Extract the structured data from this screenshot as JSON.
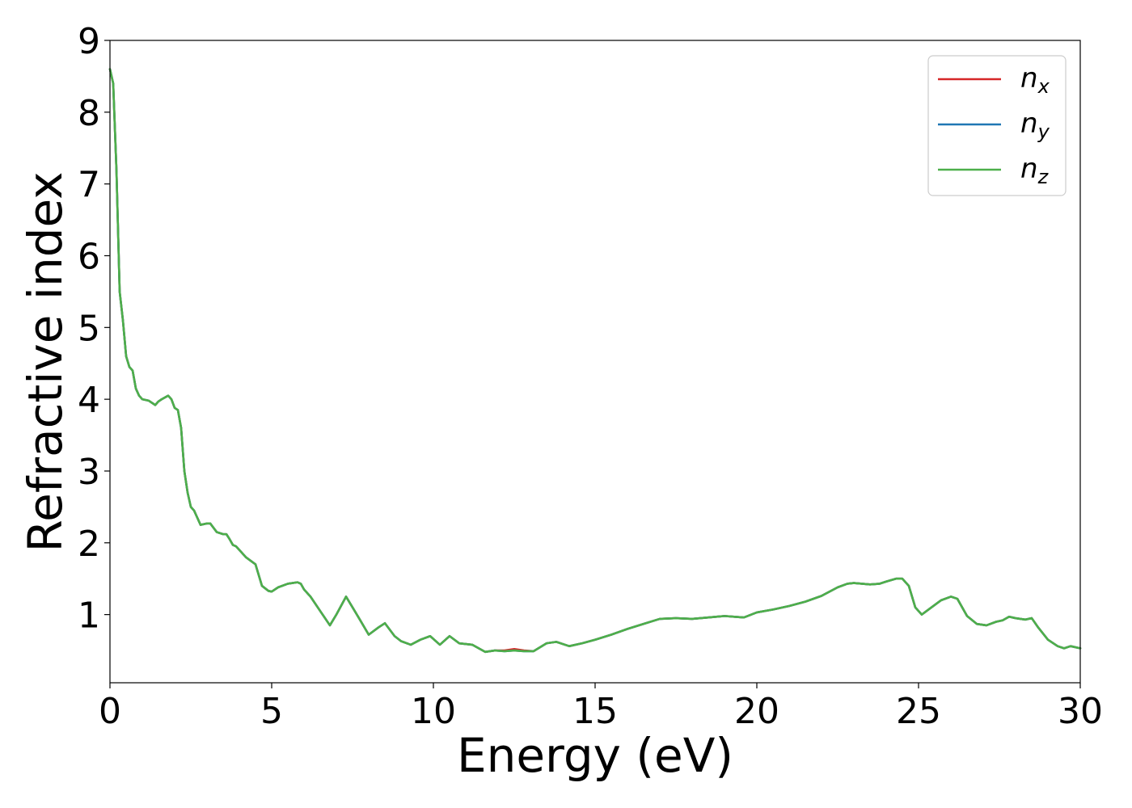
{
  "chart_data": {
    "type": "line",
    "title": "",
    "xlabel": "Energy (eV)",
    "ylabel": "Refractive index",
    "xlim": [
      0,
      30
    ],
    "ylim": [
      0.05,
      9
    ],
    "xticks": [
      0,
      5,
      10,
      15,
      20,
      25,
      30
    ],
    "yticks": [
      1,
      2,
      3,
      4,
      5,
      6,
      7,
      8,
      9
    ],
    "grid": false,
    "legend_position": "top-right",
    "legend": [
      {
        "base": "n",
        "sub": "x",
        "color": "#d62728"
      },
      {
        "base": "n",
        "sub": "y",
        "color": "#1f77b4"
      },
      {
        "base": "n",
        "sub": "z",
        "color": "#4daf4a"
      }
    ],
    "x": [
      0,
      0.1,
      0.2,
      0.3,
      0.4,
      0.5,
      0.6,
      0.7,
      0.8,
      0.9,
      1.0,
      1.2,
      1.4,
      1.5,
      1.6,
      1.8,
      1.9,
      2.0,
      2.1,
      2.2,
      2.3,
      2.4,
      2.5,
      2.6,
      2.7,
      2.8,
      3.0,
      3.1,
      3.3,
      3.5,
      3.6,
      3.7,
      3.8,
      3.9,
      4.0,
      4.2,
      4.5,
      4.7,
      4.9,
      5.0,
      5.2,
      5.5,
      5.8,
      5.9,
      6.0,
      6.2,
      6.5,
      6.8,
      7.0,
      7.3,
      7.5,
      7.7,
      8.0,
      8.3,
      8.5,
      8.8,
      9.0,
      9.3,
      9.6,
      9.9,
      10.2,
      10.5,
      10.8,
      11.2,
      11.6,
      11.9,
      12.2,
      12.5,
      12.8,
      13.1,
      13.5,
      13.8,
      14.2,
      14.6,
      15.0,
      15.5,
      16.0,
      16.5,
      17.0,
      17.5,
      18.0,
      18.5,
      19.0,
      19.3,
      19.6,
      20.0,
      20.5,
      21.0,
      21.5,
      22.0,
      22.5,
      22.8,
      23.0,
      23.5,
      23.8,
      24.0,
      24.3,
      24.5,
      24.7,
      24.9,
      25.1,
      25.4,
      25.7,
      26.0,
      26.2,
      26.5,
      26.8,
      27.1,
      27.4,
      27.6,
      27.8,
      28.0,
      28.3,
      28.5,
      28.7,
      29.0,
      29.3,
      29.5,
      29.7,
      30.0
    ],
    "series": [
      {
        "name": "n_x",
        "color": "#d62728",
        "values": [
          8.6,
          8.4,
          7.2,
          5.5,
          5.1,
          4.6,
          4.45,
          4.4,
          4.15,
          4.05,
          4.0,
          3.98,
          3.92,
          3.97,
          4.0,
          4.05,
          4.0,
          3.88,
          3.85,
          3.6,
          3.0,
          2.7,
          2.5,
          2.45,
          2.35,
          2.25,
          2.27,
          2.27,
          2.15,
          2.12,
          2.12,
          2.05,
          1.97,
          1.95,
          1.9,
          1.8,
          1.7,
          1.4,
          1.33,
          1.32,
          1.38,
          1.43,
          1.45,
          1.43,
          1.35,
          1.25,
          1.05,
          0.85,
          1.0,
          1.25,
          1.1,
          0.95,
          0.72,
          0.82,
          0.88,
          0.7,
          0.63,
          0.58,
          0.65,
          0.7,
          0.58,
          0.7,
          0.6,
          0.58,
          0.48,
          0.5,
          0.5,
          0.52,
          0.5,
          0.49,
          0.6,
          0.62,
          0.56,
          0.6,
          0.65,
          0.72,
          0.8,
          0.87,
          0.94,
          0.95,
          0.94,
          0.96,
          0.98,
          0.97,
          0.96,
          1.03,
          1.07,
          1.12,
          1.18,
          1.26,
          1.38,
          1.43,
          1.44,
          1.42,
          1.43,
          1.46,
          1.5,
          1.5,
          1.4,
          1.1,
          1.0,
          1.1,
          1.2,
          1.25,
          1.22,
          0.98,
          0.87,
          0.85,
          0.9,
          0.92,
          0.97,
          0.95,
          0.93,
          0.95,
          0.82,
          0.65,
          0.56,
          0.53,
          0.56,
          0.53
        ]
      },
      {
        "name": "n_y",
        "color": "#1f77b4",
        "values": [
          8.6,
          8.4,
          7.2,
          5.5,
          5.1,
          4.6,
          4.45,
          4.4,
          4.15,
          4.05,
          4.0,
          3.98,
          3.92,
          3.97,
          4.0,
          4.05,
          4.0,
          3.88,
          3.85,
          3.6,
          3.0,
          2.7,
          2.5,
          2.45,
          2.35,
          2.25,
          2.27,
          2.27,
          2.15,
          2.12,
          2.12,
          2.05,
          1.97,
          1.95,
          1.9,
          1.8,
          1.7,
          1.4,
          1.33,
          1.32,
          1.38,
          1.43,
          1.45,
          1.43,
          1.35,
          1.25,
          1.05,
          0.85,
          1.0,
          1.25,
          1.1,
          0.95,
          0.72,
          0.82,
          0.88,
          0.7,
          0.63,
          0.58,
          0.65,
          0.7,
          0.58,
          0.7,
          0.6,
          0.58,
          0.48,
          0.5,
          0.49,
          0.5,
          0.49,
          0.49,
          0.6,
          0.62,
          0.56,
          0.6,
          0.65,
          0.72,
          0.8,
          0.87,
          0.94,
          0.95,
          0.94,
          0.96,
          0.98,
          0.97,
          0.96,
          1.03,
          1.07,
          1.12,
          1.18,
          1.26,
          1.38,
          1.43,
          1.44,
          1.42,
          1.43,
          1.46,
          1.5,
          1.5,
          1.4,
          1.1,
          1.0,
          1.1,
          1.2,
          1.25,
          1.22,
          0.98,
          0.87,
          0.85,
          0.9,
          0.92,
          0.97,
          0.95,
          0.93,
          0.95,
          0.82,
          0.65,
          0.56,
          0.53,
          0.56,
          0.53
        ]
      },
      {
        "name": "n_z",
        "color": "#4daf4a",
        "values": [
          8.6,
          8.4,
          7.2,
          5.5,
          5.1,
          4.6,
          4.45,
          4.4,
          4.15,
          4.05,
          4.0,
          3.98,
          3.92,
          3.97,
          4.0,
          4.05,
          4.0,
          3.88,
          3.85,
          3.6,
          3.0,
          2.7,
          2.5,
          2.45,
          2.35,
          2.25,
          2.27,
          2.27,
          2.15,
          2.12,
          2.12,
          2.05,
          1.97,
          1.95,
          1.9,
          1.8,
          1.7,
          1.4,
          1.33,
          1.32,
          1.38,
          1.43,
          1.45,
          1.43,
          1.35,
          1.25,
          1.05,
          0.85,
          1.0,
          1.25,
          1.1,
          0.95,
          0.72,
          0.82,
          0.88,
          0.7,
          0.63,
          0.58,
          0.65,
          0.7,
          0.58,
          0.7,
          0.6,
          0.58,
          0.48,
          0.5,
          0.49,
          0.5,
          0.49,
          0.49,
          0.6,
          0.62,
          0.56,
          0.6,
          0.65,
          0.72,
          0.8,
          0.87,
          0.94,
          0.95,
          0.94,
          0.96,
          0.98,
          0.97,
          0.96,
          1.03,
          1.07,
          1.12,
          1.18,
          1.26,
          1.38,
          1.43,
          1.44,
          1.42,
          1.43,
          1.46,
          1.5,
          1.5,
          1.4,
          1.1,
          1.0,
          1.1,
          1.2,
          1.25,
          1.22,
          0.98,
          0.87,
          0.85,
          0.9,
          0.92,
          0.97,
          0.95,
          0.93,
          0.95,
          0.82,
          0.65,
          0.56,
          0.53,
          0.56,
          0.53
        ]
      }
    ]
  }
}
